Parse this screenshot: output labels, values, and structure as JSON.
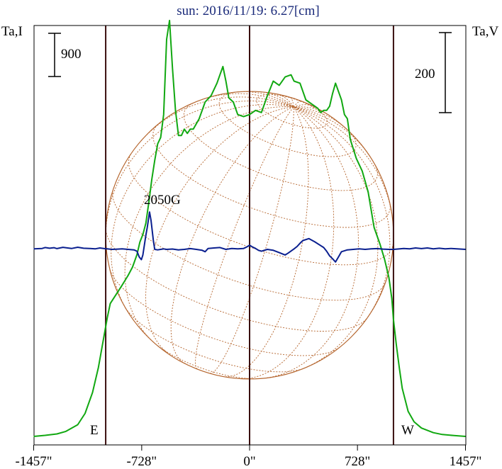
{
  "chart_data": {
    "type": "line",
    "title": "sun: 2016/11/19: 6.27[cm]",
    "ylabel_left": "Ta,I",
    "ylabel_right": "Ta,V",
    "scale_bar_left": "900",
    "scale_bar_right": "200",
    "annotation": "2050G",
    "limb_labels": {
      "east": "E",
      "west": "W"
    },
    "xlim": [
      -1457,
      1457
    ],
    "x_ticks": [
      {
        "value": -1457,
        "label": "-1457\""
      },
      {
        "value": -728,
        "label": "-728\""
      },
      {
        "value": 0,
        "label": "0\""
      },
      {
        "value": 728,
        "label": "728\""
      },
      {
        "value": 1457,
        "label": "1457\""
      }
    ],
    "vertical_lines": [
      -971,
      0,
      971
    ],
    "solar_disk_radius_arcsec": 971,
    "series": [
      {
        "color": "#11a811",
        "axis": "left",
        "x": [
          -1457,
          -1380,
          -1300,
          -1240,
          -1160,
          -1110,
          -1060,
          -1020,
          -990,
          -960,
          -940,
          -900,
          -860,
          -820,
          -790,
          -760,
          -740,
          -720,
          -700,
          -680,
          -660,
          -640,
          -620,
          -600,
          -580,
          -560,
          -540,
          -520,
          -500,
          -480,
          -460,
          -440,
          -420,
          -400,
          -380,
          -340,
          -300,
          -260,
          -220,
          -200,
          -180,
          -160,
          -140,
          -110,
          -80,
          -40,
          0,
          40,
          80,
          120,
          160,
          200,
          240,
          280,
          300,
          340,
          380,
          420,
          460,
          480,
          500,
          520,
          540,
          560,
          580,
          620,
          640,
          660,
          680,
          720,
          760,
          800,
          840,
          880,
          910,
          940,
          960,
          971,
          990,
          1010,
          1030,
          1070,
          1110,
          1160,
          1240,
          1300,
          1380,
          1457
        ],
        "y": [
          0.0,
          0.25,
          0.6,
          1.2,
          2.8,
          5.5,
          10.5,
          16.5,
          22.5,
          28.5,
          31.8,
          34.0,
          36.2,
          38.5,
          40.5,
          43.5,
          46.5,
          48.3,
          51.0,
          56.0,
          61.5,
          66.0,
          70.0,
          71.5,
          77.0,
          95.0,
          99.5,
          88.0,
          78.0,
          72.0,
          72.0,
          73.5,
          72.5,
          73.5,
          73.5,
          76.0,
          80.0,
          81.5,
          84.5,
          86.5,
          88.5,
          85.0,
          81.0,
          80.0,
          77.0,
          76.5,
          77.0,
          78.0,
          77.5,
          81.5,
          85.0,
          84.0,
          86.0,
          86.5,
          85.0,
          84.5,
          80.5,
          79.5,
          78.5,
          77.5,
          78.0,
          78.0,
          79.0,
          82.0,
          84.5,
          80.5,
          77.0,
          76.0,
          71.0,
          66.5,
          63.5,
          58.5,
          50.0,
          46.0,
          42.5,
          38.0,
          33.0,
          28.0,
          22.0,
          16.5,
          11.5,
          6.0,
          3.5,
          2.0,
          0.9,
          0.45,
          0.2,
          0.0
        ]
      },
      {
        "color": "#0a1f8f",
        "axis": "right",
        "x": [
          -1457,
          -1400,
          -1380,
          -1350,
          -1320,
          -1300,
          -1260,
          -1200,
          -1160,
          -1120,
          -1080,
          -1040,
          -1010,
          -980,
          -960,
          -930,
          -900,
          -860,
          -820,
          -780,
          -760,
          -745,
          -730,
          -720,
          -700,
          -690,
          -675,
          -665,
          -650,
          -640,
          -620,
          -600,
          -580,
          -560,
          -520,
          -480,
          -440,
          -400,
          -360,
          -320,
          -300,
          -280,
          -240,
          -200,
          -160,
          -120,
          -80,
          -40,
          -20,
          0,
          20,
          40,
          60,
          80,
          120,
          160,
          200,
          240,
          260,
          300,
          320,
          340,
          360,
          400,
          440,
          480,
          500,
          520,
          540,
          560,
          580,
          600,
          620,
          660,
          700,
          740,
          780,
          820,
          860,
          900,
          940,
          971,
          1000,
          1040,
          1080,
          1120,
          1160,
          1200,
          1240,
          1280,
          1320,
          1360,
          1400,
          1457
        ],
        "y": [
          0.5,
          1.0,
          2.0,
          1.2,
          1.8,
          0.8,
          2.2,
          1.0,
          2.3,
          1.2,
          1.0,
          0.6,
          1.5,
          0.8,
          0.5,
          0.0,
          0.2,
          0.5,
          0.0,
          -0.5,
          -2.0,
          -8.0,
          -11.0,
          -6.0,
          15.0,
          24.0,
          40.0,
          31.0,
          10.0,
          0.0,
          -0.5,
          0.0,
          0.5,
          0.0,
          0.4,
          -0.5,
          0.0,
          0.8,
          0.0,
          -1.0,
          -2.5,
          1.0,
          1.5,
          2.0,
          0.0,
          1.0,
          0.5,
          1.0,
          2.5,
          4.5,
          2.5,
          1.0,
          -1.0,
          -2.0,
          0.0,
          -1.0,
          -3.5,
          -6.0,
          -4.0,
          0.5,
          3.0,
          6.5,
          9.5,
          11.5,
          8.0,
          4.0,
          2.0,
          -2.0,
          -7.0,
          -10.0,
          -13.5,
          -8.0,
          -2.5,
          -0.5,
          0.0,
          0.5,
          0.0,
          0.5,
          0.8,
          0.3,
          0.0,
          0.0,
          0.4,
          1.0,
          0.5,
          1.5,
          0.8,
          1.5,
          0.5,
          1.2,
          0.6,
          1.0,
          0.5,
          0.0
        ]
      }
    ]
  }
}
